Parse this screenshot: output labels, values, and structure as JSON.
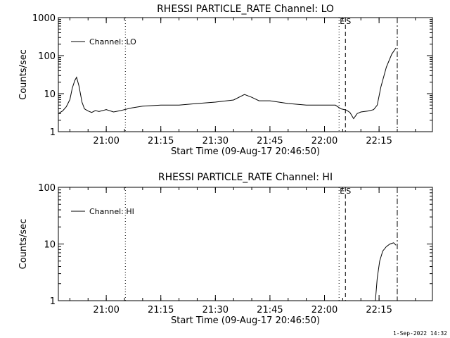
{
  "footer_timestamp": "1-Sep-2022 14:32",
  "chart_data": [
    {
      "type": "line",
      "title": "RHESSI PARTICLE_RATE Channel: LO",
      "xlabel": "Start Time (09-Aug-17 20:46:50)",
      "ylabel": "Counts/sec",
      "yscale": "log",
      "ylim": [
        1,
        1000
      ],
      "y_ticks": [
        "1",
        "10",
        "100",
        "1000"
      ],
      "xlim": [
        "20:46:50",
        "22:29:40"
      ],
      "x_ticks": [
        "21:00",
        "21:15",
        "21:30",
        "21:45",
        "22:00",
        "22:15"
      ],
      "legend": {
        "position": "top-left",
        "entries": [
          "Channel: LO"
        ]
      },
      "markers": [
        {
          "time": "21:05:15",
          "style": "dotted",
          "label": ""
        },
        {
          "time": "22:04:00",
          "style": "dotted",
          "label": "E"
        },
        {
          "time": "22:05:45",
          "style": "dashed",
          "label": "S"
        },
        {
          "time": "22:20:00",
          "style": "dashdot",
          "label": ""
        }
      ],
      "series": [
        {
          "name": "Channel: LO",
          "x": [
            "20:46:50",
            "20:48:00",
            "20:49:00",
            "20:50:00",
            "20:50:40",
            "20:51:20",
            "20:51:50",
            "20:52:30",
            "20:53:20",
            "20:54:00",
            "20:55:00",
            "20:56:00",
            "20:57:00",
            "20:58:00",
            "21:00:00",
            "21:02:00",
            "21:04:00",
            "21:05:00",
            "21:07:00",
            "21:10:00",
            "21:15:00",
            "21:20:00",
            "21:25:00",
            "21:30:00",
            "21:35:00",
            "21:38:00",
            "21:40:00",
            "21:42:00",
            "21:45:00",
            "21:50:00",
            "21:55:00",
            "22:00:00",
            "22:03:00",
            "22:04:30",
            "22:06:00",
            "22:07:00",
            "22:08:00",
            "22:09:00",
            "22:10:00",
            "22:12:00",
            "22:13:30",
            "22:14:30",
            "22:15:30",
            "22:17:00",
            "22:18:30",
            "22:19:40"
          ],
          "y": [
            3,
            3.5,
            4.5,
            7,
            14,
            22,
            27,
            16,
            6,
            4,
            3.5,
            3.2,
            3.6,
            3.4,
            3.8,
            3.3,
            3.6,
            3.8,
            4.2,
            4.7,
            5,
            5,
            5.5,
            6,
            6.8,
            9.5,
            8,
            6.5,
            6.5,
            5.5,
            5,
            5,
            5,
            4,
            3.7,
            3.2,
            2.2,
            3,
            3.3,
            3.5,
            3.8,
            5,
            15,
            50,
            110,
            160
          ]
        }
      ]
    },
    {
      "type": "line",
      "title": "RHESSI PARTICLE_RATE Channel: HI",
      "xlabel": "Start Time (09-Aug-17 20:46:50)",
      "ylabel": "Counts/sec",
      "yscale": "log",
      "ylim": [
        1,
        100
      ],
      "y_ticks": [
        "1",
        "10",
        "100"
      ],
      "xlim": [
        "20:46:50",
        "22:29:40"
      ],
      "x_ticks": [
        "21:00",
        "21:15",
        "21:30",
        "21:45",
        "22:00",
        "22:15"
      ],
      "legend": {
        "position": "top-left",
        "entries": [
          "Channel: HI"
        ]
      },
      "markers": [
        {
          "time": "21:05:15",
          "style": "dotted",
          "label": ""
        },
        {
          "time": "22:04:00",
          "style": "dotted",
          "label": "E"
        },
        {
          "time": "22:05:45",
          "style": "dashed",
          "label": "S"
        },
        {
          "time": "22:20:00",
          "style": "dashdot",
          "label": ""
        }
      ],
      "series": [
        {
          "name": "Channel: HI",
          "x": [
            "22:14:00",
            "22:14:30",
            "22:15:10",
            "22:16:00",
            "22:17:00",
            "22:18:00",
            "22:19:00",
            "22:19:40"
          ],
          "y": [
            1,
            2.5,
            5,
            7.5,
            9,
            10,
            10.5,
            9.5
          ]
        }
      ]
    }
  ]
}
